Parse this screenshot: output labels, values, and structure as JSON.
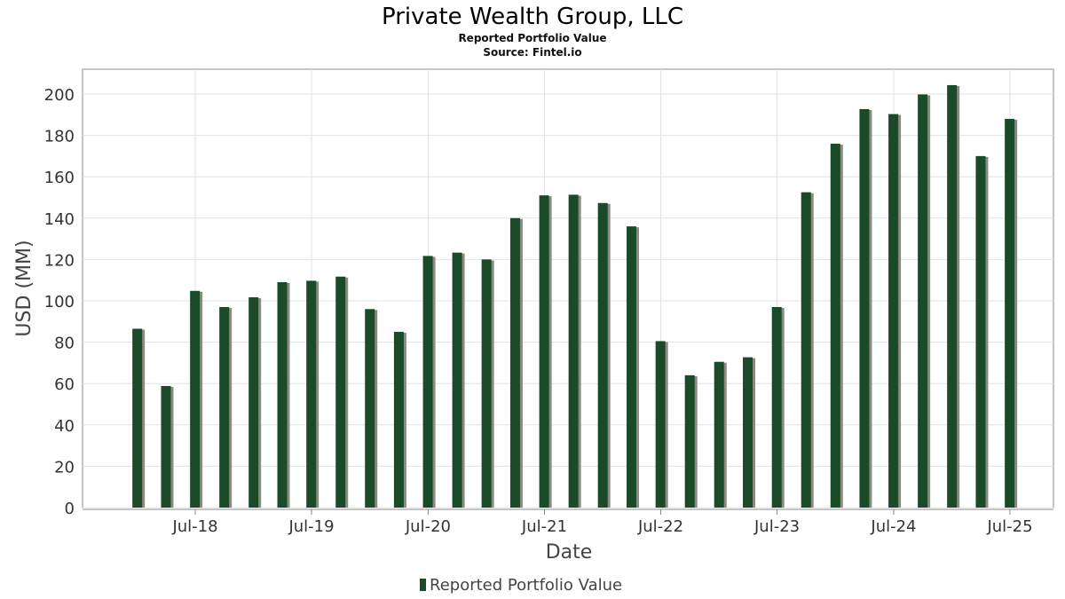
{
  "chart_data": {
    "type": "bar",
    "title": "Private Wealth Group, LLC",
    "subtitle": "Reported Portfolio Value",
    "source": "Source: Fintel.io",
    "xlabel": "Date",
    "ylabel": "USD (MM)",
    "ylim": [
      0,
      212
    ],
    "yticks": [
      0,
      20,
      40,
      60,
      80,
      100,
      120,
      140,
      160,
      180,
      200
    ],
    "xticks": [
      "Jul-18",
      "Jul-19",
      "Jul-20",
      "Jul-21",
      "Jul-22",
      "Jul-23",
      "Jul-24",
      "Jul-25"
    ],
    "grid": true,
    "legend_position": "bottom",
    "series": [
      {
        "name": "Reported Portfolio Value",
        "color": "#1a4a28",
        "x": [
          "2017-12-31",
          "2018-03-31",
          "2018-06-30",
          "2018-09-30",
          "2018-12-31",
          "2019-03-31",
          "2019-06-30",
          "2019-09-30",
          "2019-12-31",
          "2020-03-31",
          "2020-06-30",
          "2020-09-30",
          "2020-12-31",
          "2021-03-31",
          "2021-06-30",
          "2021-09-30",
          "2021-12-31",
          "2022-03-31",
          "2022-06-30",
          "2022-09-30",
          "2022-12-31",
          "2023-03-31",
          "2023-06-30",
          "2023-09-30",
          "2023-12-31",
          "2024-03-31",
          "2024-06-30",
          "2024-09-30",
          "2024-12-31",
          "2025-03-31",
          "2025-06-30"
        ],
        "values": [
          86.5,
          58.8,
          104.8,
          97.0,
          101.7,
          109.0,
          109.7,
          111.7,
          96.0,
          85.0,
          121.7,
          123.3,
          120.0,
          140.0,
          151.0,
          151.3,
          147.3,
          136.0,
          80.5,
          64.0,
          70.5,
          72.7,
          97.0,
          152.5,
          176.0,
          192.7,
          190.3,
          199.8,
          204.3,
          170.0,
          188.0
        ]
      }
    ]
  }
}
